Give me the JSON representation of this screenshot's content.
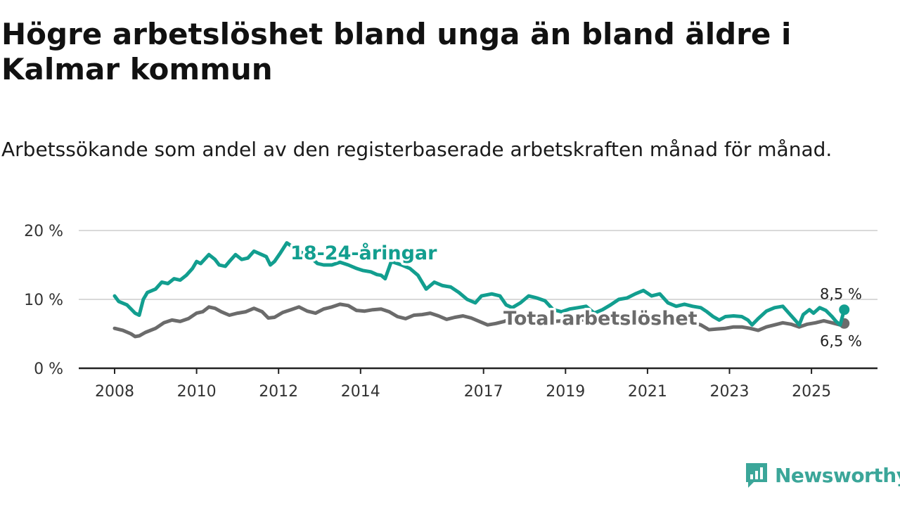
{
  "header": {
    "title": "Högre arbetslöshet bland unga än bland äldre i Kalmar kommun",
    "subtitle": "Arbetssökande som andel av den registerbaserade arbetskraften månad för månad."
  },
  "brand": {
    "name": "Newsworthy"
  },
  "colors": {
    "youth": "#129e8f",
    "total": "#6b6b6b",
    "grid": "#d9d9d9",
    "axis": "#222222"
  },
  "chart_data": {
    "type": "line",
    "title": "Högre arbetslöshet bland unga än bland äldre i Kalmar kommun",
    "subtitle": "Arbetssökande som andel av den registerbaserade arbetskraften månad för månad.",
    "xlabel": "",
    "ylabel": "",
    "ylim": [
      0,
      20
    ],
    "xlim": [
      2008,
      2026.5
    ],
    "y_ticks": [
      0,
      10,
      20
    ],
    "y_tick_labels": [
      "0 %",
      "10 %",
      "20 %"
    ],
    "x_ticks": [
      2008,
      2010,
      2012,
      2014,
      2017,
      2019,
      2021,
      2023,
      2025
    ],
    "x_tick_labels": [
      "2008",
      "2010",
      "2012",
      "2014",
      "2017",
      "2019",
      "2021",
      "2023",
      "2025"
    ],
    "grid": true,
    "series": [
      {
        "name": "18-24-åringar",
        "label": "18-24-åringar",
        "end_label": "8,5 %",
        "points": [
          [
            2008.0,
            10.5
          ],
          [
            2008.1,
            9.7
          ],
          [
            2008.3,
            9.2
          ],
          [
            2008.5,
            8.0
          ],
          [
            2008.6,
            7.7
          ],
          [
            2008.7,
            10.0
          ],
          [
            2008.8,
            11.0
          ],
          [
            2009.0,
            11.5
          ],
          [
            2009.15,
            12.5
          ],
          [
            2009.3,
            12.3
          ],
          [
            2009.45,
            13.0
          ],
          [
            2009.6,
            12.8
          ],
          [
            2009.75,
            13.5
          ],
          [
            2009.9,
            14.5
          ],
          [
            2010.0,
            15.5
          ],
          [
            2010.1,
            15.2
          ],
          [
            2010.3,
            16.5
          ],
          [
            2010.45,
            15.8
          ],
          [
            2010.55,
            15.0
          ],
          [
            2010.7,
            14.8
          ],
          [
            2010.8,
            15.5
          ],
          [
            2010.95,
            16.5
          ],
          [
            2011.1,
            15.8
          ],
          [
            2011.25,
            16.0
          ],
          [
            2011.4,
            17.0
          ],
          [
            2011.55,
            16.6
          ],
          [
            2011.7,
            16.2
          ],
          [
            2011.8,
            15.0
          ],
          [
            2011.9,
            15.5
          ],
          [
            2012.05,
            16.8
          ],
          [
            2012.2,
            18.2
          ],
          [
            2012.35,
            17.6
          ],
          [
            2012.5,
            17.0
          ],
          [
            2012.65,
            16.5
          ],
          [
            2012.8,
            16.0
          ],
          [
            2012.95,
            15.2
          ],
          [
            2013.1,
            15.0
          ],
          [
            2013.3,
            15.0
          ],
          [
            2013.5,
            15.4
          ],
          [
            2013.7,
            15.0
          ],
          [
            2013.9,
            14.5
          ],
          [
            2014.05,
            14.2
          ],
          [
            2014.25,
            14.0
          ],
          [
            2014.4,
            13.6
          ],
          [
            2014.5,
            13.5
          ],
          [
            2014.6,
            13.0
          ],
          [
            2014.75,
            15.5
          ],
          [
            2014.9,
            15.2
          ],
          [
            2015.0,
            15.0
          ],
          [
            2015.2,
            14.5
          ],
          [
            2015.4,
            13.5
          ],
          [
            2015.6,
            11.5
          ],
          [
            2015.8,
            12.5
          ],
          [
            2016.0,
            12.0
          ],
          [
            2016.2,
            11.8
          ],
          [
            2016.4,
            11.0
          ],
          [
            2016.6,
            10.0
          ],
          [
            2016.8,
            9.5
          ],
          [
            2016.95,
            10.5
          ],
          [
            2017.2,
            10.8
          ],
          [
            2017.4,
            10.5
          ],
          [
            2017.55,
            9.2
          ],
          [
            2017.7,
            8.8
          ],
          [
            2017.9,
            9.5
          ],
          [
            2018.1,
            10.5
          ],
          [
            2018.3,
            10.2
          ],
          [
            2018.5,
            9.8
          ],
          [
            2018.7,
            8.5
          ],
          [
            2018.9,
            8.2
          ],
          [
            2019.1,
            8.6
          ],
          [
            2019.3,
            8.8
          ],
          [
            2019.5,
            9.0
          ],
          [
            2019.7,
            8.0
          ],
          [
            2019.9,
            8.5
          ],
          [
            2020.1,
            9.2
          ],
          [
            2020.3,
            10.0
          ],
          [
            2020.5,
            10.2
          ],
          [
            2020.7,
            10.8
          ],
          [
            2020.9,
            11.3
          ],
          [
            2021.1,
            10.5
          ],
          [
            2021.3,
            10.8
          ],
          [
            2021.5,
            9.5
          ],
          [
            2021.7,
            9.0
          ],
          [
            2021.9,
            9.3
          ],
          [
            2022.1,
            9.0
          ],
          [
            2022.3,
            8.8
          ],
          [
            2022.45,
            8.2
          ],
          [
            2022.6,
            7.5
          ],
          [
            2022.75,
            7.0
          ],
          [
            2022.9,
            7.5
          ],
          [
            2023.1,
            7.6
          ],
          [
            2023.3,
            7.5
          ],
          [
            2023.45,
            7.0
          ],
          [
            2023.55,
            6.3
          ],
          [
            2023.7,
            7.2
          ],
          [
            2023.9,
            8.3
          ],
          [
            2024.1,
            8.8
          ],
          [
            2024.3,
            9.0
          ],
          [
            2024.45,
            8.0
          ],
          [
            2024.6,
            7.0
          ],
          [
            2024.7,
            6.3
          ],
          [
            2024.8,
            7.8
          ],
          [
            2024.95,
            8.5
          ],
          [
            2025.05,
            8.0
          ],
          [
            2025.2,
            8.8
          ],
          [
            2025.35,
            8.4
          ],
          [
            2025.5,
            7.5
          ],
          [
            2025.6,
            6.8
          ],
          [
            2025.7,
            6.3
          ],
          [
            2025.8,
            8.5
          ]
        ]
      },
      {
        "name": "Total arbetslöshet",
        "label": "Total arbetslöshet",
        "end_label": "6,5 %",
        "points": [
          [
            2008.0,
            5.8
          ],
          [
            2008.2,
            5.5
          ],
          [
            2008.4,
            5.0
          ],
          [
            2008.5,
            4.6
          ],
          [
            2008.6,
            4.7
          ],
          [
            2008.75,
            5.2
          ],
          [
            2009.0,
            5.8
          ],
          [
            2009.2,
            6.6
          ],
          [
            2009.4,
            7.0
          ],
          [
            2009.6,
            6.8
          ],
          [
            2009.8,
            7.2
          ],
          [
            2010.0,
            8.0
          ],
          [
            2010.15,
            8.2
          ],
          [
            2010.3,
            8.9
          ],
          [
            2010.45,
            8.7
          ],
          [
            2010.6,
            8.2
          ],
          [
            2010.8,
            7.7
          ],
          [
            2011.0,
            8.0
          ],
          [
            2011.2,
            8.2
          ],
          [
            2011.4,
            8.7
          ],
          [
            2011.6,
            8.2
          ],
          [
            2011.75,
            7.3
          ],
          [
            2011.9,
            7.4
          ],
          [
            2012.1,
            8.1
          ],
          [
            2012.3,
            8.5
          ],
          [
            2012.5,
            8.9
          ],
          [
            2012.7,
            8.3
          ],
          [
            2012.9,
            8.0
          ],
          [
            2013.1,
            8.6
          ],
          [
            2013.3,
            8.9
          ],
          [
            2013.5,
            9.3
          ],
          [
            2013.7,
            9.1
          ],
          [
            2013.9,
            8.4
          ],
          [
            2014.1,
            8.3
          ],
          [
            2014.3,
            8.5
          ],
          [
            2014.5,
            8.6
          ],
          [
            2014.7,
            8.2
          ],
          [
            2014.9,
            7.5
          ],
          [
            2015.1,
            7.2
          ],
          [
            2015.3,
            7.7
          ],
          [
            2015.5,
            7.8
          ],
          [
            2015.7,
            8.0
          ],
          [
            2015.9,
            7.6
          ],
          [
            2016.1,
            7.1
          ],
          [
            2016.3,
            7.4
          ],
          [
            2016.5,
            7.6
          ],
          [
            2016.7,
            7.3
          ],
          [
            2016.9,
            6.8
          ],
          [
            2017.1,
            6.3
          ],
          [
            2017.3,
            6.5
          ],
          [
            2017.5,
            6.8
          ],
          [
            2017.7,
            7.2
          ],
          [
            2017.9,
            7.0
          ],
          [
            2018.1,
            7.2
          ],
          [
            2018.4,
            7.0
          ],
          [
            2018.7,
            6.8
          ],
          [
            2019.0,
            6.9
          ],
          [
            2019.4,
            7.0
          ],
          [
            2019.8,
            7.1
          ],
          [
            2020.2,
            7.0
          ],
          [
            2020.6,
            7.2
          ],
          [
            2021.0,
            7.1
          ],
          [
            2021.4,
            7.0
          ],
          [
            2021.8,
            6.8
          ],
          [
            2022.1,
            6.6
          ],
          [
            2022.3,
            6.3
          ],
          [
            2022.5,
            5.6
          ],
          [
            2022.7,
            5.7
          ],
          [
            2022.9,
            5.8
          ],
          [
            2023.1,
            6.0
          ],
          [
            2023.3,
            6.0
          ],
          [
            2023.5,
            5.8
          ],
          [
            2023.7,
            5.5
          ],
          [
            2023.9,
            6.0
          ],
          [
            2024.1,
            6.3
          ],
          [
            2024.3,
            6.6
          ],
          [
            2024.5,
            6.4
          ],
          [
            2024.7,
            6.0
          ],
          [
            2024.9,
            6.4
          ],
          [
            2025.1,
            6.6
          ],
          [
            2025.3,
            6.9
          ],
          [
            2025.5,
            6.6
          ],
          [
            2025.7,
            6.3
          ],
          [
            2025.8,
            6.5
          ]
        ]
      }
    ]
  }
}
